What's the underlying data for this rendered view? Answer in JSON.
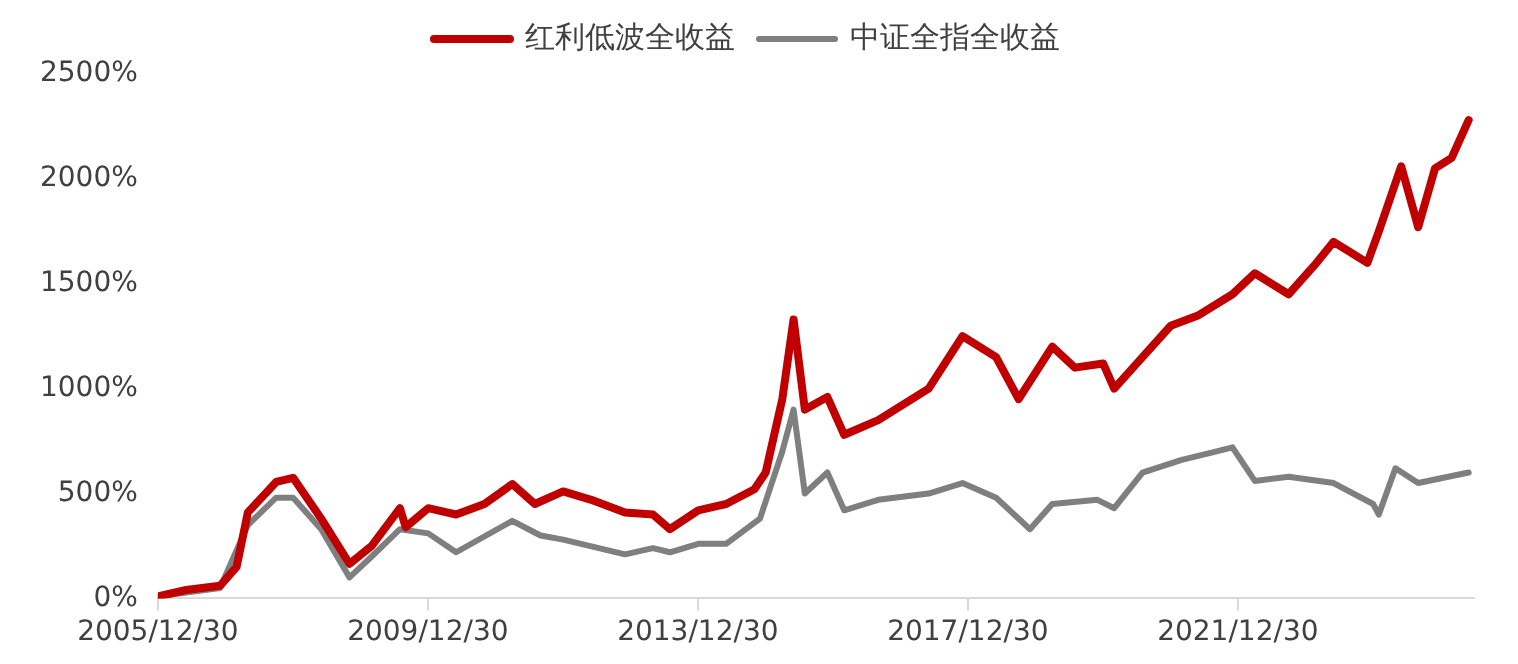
{
  "chart_data": {
    "type": "line",
    "legend": "top",
    "grid": false,
    "marker": "none",
    "line_style": "solid",
    "xlim": [
      "2005-12-30",
      "2025-06-30"
    ],
    "xticks": [
      {
        "value": "2005-12-30",
        "label": "2005/12/30"
      },
      {
        "value": "2009-12-30",
        "label": "2009/12/30"
      },
      {
        "value": "2013-12-30",
        "label": "2013/12/30"
      },
      {
        "value": "2017-12-30",
        "label": "2017/12/30"
      },
      {
        "value": "2021-12-30",
        "label": "2021/12/30"
      }
    ],
    "ylim": [
      0,
      2500
    ],
    "yticks": [
      {
        "value": 0,
        "label": "0%"
      },
      {
        "value": 500,
        "label": "500%"
      },
      {
        "value": 1000,
        "label": "1000%"
      },
      {
        "value": 1500,
        "label": "1500%"
      },
      {
        "value": 2000,
        "label": "2000%"
      },
      {
        "value": 2500,
        "label": "2500%"
      }
    ],
    "series": [
      {
        "name": "红利低波全收益",
        "color": "#c00000",
        "x": [
          "2005-12-30",
          "2006-06",
          "2006-12",
          "2007-03",
          "2007-05",
          "2007-10",
          "2008-01",
          "2008-06",
          "2008-11",
          "2009-03",
          "2009-08",
          "2009-09",
          "2010-01",
          "2010-06",
          "2010-11",
          "2011-04",
          "2011-08",
          "2012-01",
          "2012-06",
          "2012-12",
          "2013-05",
          "2013-08",
          "2014-01",
          "2014-06",
          "2014-11",
          "2015-01",
          "2015-04",
          "2015-06",
          "2015-08",
          "2015-12",
          "2016-03",
          "2016-09",
          "2017-06",
          "2017-12",
          "2018-06",
          "2018-10",
          "2019-04",
          "2019-08",
          "2020-01",
          "2020-03",
          "2020-08",
          "2021-01",
          "2021-06",
          "2021-12",
          "2022-04",
          "2022-10",
          "2023-03",
          "2023-06",
          "2023-12",
          "2024-02",
          "2024-06",
          "2024-09",
          "2024-12",
          "2025-03",
          "2025-06"
        ],
        "values": [
          10,
          40,
          60,
          150,
          410,
          555,
          575,
          380,
          165,
          250,
          430,
          340,
          430,
          400,
          450,
          545,
          450,
          510,
          470,
          410,
          400,
          330,
          420,
          450,
          520,
          600,
          950,
          1330,
          900,
          960,
          780,
          850,
          1000,
          1250,
          1150,
          950,
          1200,
          1100,
          1120,
          1000,
          1150,
          1300,
          1350,
          1450,
          1550,
          1450,
          1600,
          1700,
          1600,
          1750,
          2060,
          1770,
          2050,
          2100,
          2280
        ]
      },
      {
        "name": "中证全指全收益",
        "color": "#7f7f7f",
        "x": [
          "2005-12-30",
          "2006-12",
          "2007-05",
          "2007-10",
          "2008-01",
          "2008-06",
          "2008-11",
          "2009-03",
          "2009-08",
          "2010-01",
          "2010-06",
          "2011-04",
          "2011-09",
          "2012-01",
          "2012-12",
          "2013-05",
          "2013-08",
          "2014-01",
          "2014-06",
          "2014-12",
          "2015-04",
          "2015-06",
          "2015-08",
          "2015-12",
          "2016-03",
          "2016-09",
          "2017-06",
          "2017-12",
          "2018-06",
          "2018-12",
          "2019-04",
          "2019-12",
          "2020-03",
          "2020-08",
          "2021-03",
          "2021-09",
          "2021-12",
          "2022-04",
          "2022-10",
          "2023-06",
          "2024-01",
          "2024-02",
          "2024-05",
          "2024-09",
          "2025-06"
        ],
        "values": [
          10,
          50,
          350,
          480,
          480,
          330,
          100,
          200,
          330,
          310,
          220,
          370,
          300,
          280,
          210,
          240,
          220,
          260,
          260,
          380,
          700,
          900,
          500,
          600,
          420,
          470,
          500,
          550,
          480,
          330,
          450,
          470,
          430,
          600,
          660,
          700,
          720,
          560,
          580,
          550,
          450,
          400,
          620,
          550,
          600
        ]
      }
    ]
  }
}
